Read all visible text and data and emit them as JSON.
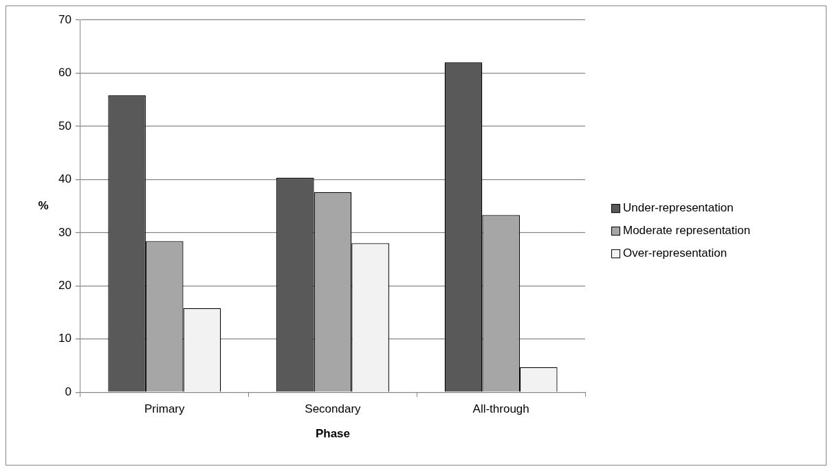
{
  "chart_data": {
    "type": "bar",
    "xlabel": "Phase",
    "ylabel": "%",
    "categories": [
      "Primary",
      "Secondary",
      "All-through"
    ],
    "series": [
      {
        "name": "Under-representation",
        "color": "#595959",
        "values": [
          55.8,
          40.3,
          62.0
        ]
      },
      {
        "name": "Moderate representation",
        "color": "#a6a6a6",
        "values": [
          28.4,
          37.6,
          33.3
        ]
      },
      {
        "name": "Over-representation",
        "color": "#f2f2f2",
        "values": [
          15.8,
          28.0,
          4.7
        ]
      }
    ],
    "ylim": [
      0,
      70
    ],
    "yticks": [
      0,
      10,
      20,
      30,
      40,
      50,
      60,
      70
    ],
    "grid": "y",
    "legend": "right"
  }
}
